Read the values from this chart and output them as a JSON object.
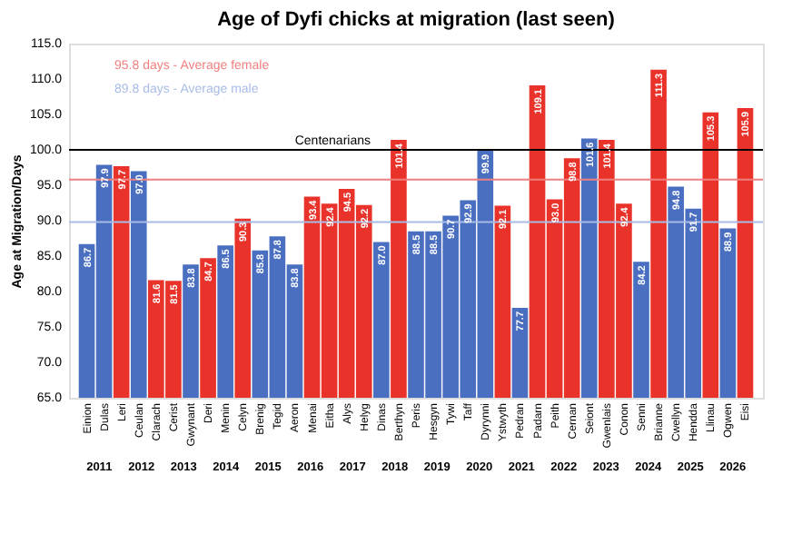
{
  "chart_data": {
    "type": "bar",
    "title": "Age of Dyfi chicks at migration (last seen)",
    "ylabel": "Age at Migration/Days",
    "categories": [
      "Einion",
      "Dulas",
      "Leri",
      "Ceulan",
      "Clarach",
      "Cerist",
      "Gwynant",
      "Deri",
      "Menin",
      "Celyn",
      "Brenig",
      "Tegid",
      "Aeron",
      "Menai",
      "Eitha",
      "Alys",
      "Helyg",
      "Dinas",
      "Berthyn",
      "Peris",
      "Hesgyn",
      "Tywi",
      "Taff",
      "Dyrynni",
      "Ystwyth",
      "Pedran",
      "Padarn",
      "Peith",
      "Cernan",
      "Seiont",
      "Gwenlais",
      "Conon",
      "Senni",
      "Brianne",
      "Cwellyn",
      "Hendda",
      "Llinau",
      "Ogwen",
      "Eisi"
    ],
    "values": [
      86.7,
      97.9,
      97.7,
      97.0,
      81.6,
      81.5,
      83.8,
      84.7,
      86.5,
      90.3,
      85.8,
      87.8,
      83.8,
      93.4,
      92.4,
      94.5,
      92.2,
      87.0,
      101.4,
      88.5,
      88.5,
      90.7,
      92.9,
      99.9,
      92.1,
      77.7,
      109.1,
      93.0,
      98.8,
      101.6,
      101.4,
      92.4,
      84.2,
      111.3,
      94.8,
      91.7,
      105.3,
      88.9,
      105.9
    ],
    "colors": [
      "#4a6fc0",
      "#4a6fc0",
      "#e8322a",
      "#4a6fc0",
      "#e8322a",
      "#e8322a",
      "#4a6fc0",
      "#e8322a",
      "#4a6fc0",
      "#e8322a",
      "#4a6fc0",
      "#4a6fc0",
      "#4a6fc0",
      "#e8322a",
      "#e8322a",
      "#e8322a",
      "#e8322a",
      "#4a6fc0",
      "#e8322a",
      "#4a6fc0",
      "#4a6fc0",
      "#4a6fc0",
      "#4a6fc0",
      "#4a6fc0",
      "#e8322a",
      "#4a6fc0",
      "#e8322a",
      "#e8322a",
      "#e8322a",
      "#4a6fc0",
      "#e8322a",
      "#e8322a",
      "#4a6fc0",
      "#e8322a",
      "#4a6fc0",
      "#4a6fc0",
      "#e8322a",
      "#4a6fc0",
      "#e8322a"
    ],
    "value_labels": [
      "86.7",
      "97.9",
      "97.7",
      "97.0",
      "81.6",
      "81.5",
      "83.8",
      "84.7",
      "86.5",
      "90.3",
      "85.8",
      "87.8",
      "83.8",
      "93.4",
      "92.4",
      "94.5",
      "92.2",
      "87.0",
      "101.4",
      "88.5",
      "88.5",
      "90.7",
      "92.9",
      "99.9",
      "92.1",
      "77.7",
      "109.1",
      "93.0",
      "98.8",
      "101.6",
      "101.4",
      "92.4",
      "84.2",
      "111.3",
      "94.8",
      "91.7",
      "105.3",
      "88.9",
      "105.9"
    ],
    "ylim": [
      65,
      115
    ],
    "yticks": [
      {
        "value": 65,
        "label": "65.0"
      },
      {
        "value": 70,
        "label": "70.0"
      },
      {
        "value": 75,
        "label": "75.0"
      },
      {
        "value": 80,
        "label": "80.0"
      },
      {
        "value": 85,
        "label": "85.0"
      },
      {
        "value": 90,
        "label": "90.0"
      },
      {
        "value": 95,
        "label": "95.0"
      },
      {
        "value": 100,
        "label": "100.0"
      },
      {
        "value": 105,
        "label": "105.0"
      },
      {
        "value": 110,
        "label": "110.0"
      },
      {
        "value": 115,
        "label": "115.0"
      }
    ],
    "grid": false,
    "ref_lines": [
      {
        "axis": "y",
        "value": 95.8,
        "label": "95.8 days - Average female",
        "color": "#f08080"
      },
      {
        "axis": "y",
        "value": 89.8,
        "label": "89.8 days - Average male",
        "color": "#a8bce6"
      },
      {
        "axis": "y",
        "value": 100,
        "label": "Centenarians",
        "color": "#000000"
      }
    ],
    "annotations": [
      "2011",
      "2012",
      "2013",
      "2014",
      "2015",
      "2016",
      "2017",
      "2018",
      "2019",
      "2020",
      "2021",
      "2022",
      "2023",
      "2024",
      "2025",
      "2026"
    ]
  }
}
